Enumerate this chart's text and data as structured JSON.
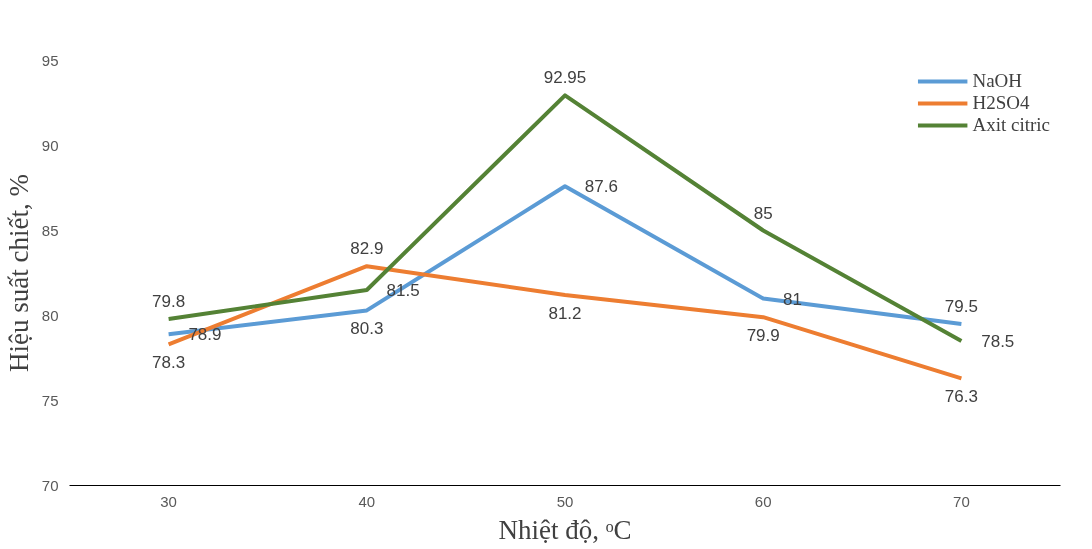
{
  "chart_data": {
    "type": "line",
    "xlabel": "Nhiệt độ, ᵒC",
    "ylabel": "Hiệu suất chiết, %",
    "categories": [
      "30",
      "40",
      "50",
      "60",
      "70"
    ],
    "series": [
      {
        "name": "NaOH",
        "color": "#5b9bd5",
        "values": [
          78.9,
          80.3,
          87.6,
          81,
          79.5
        ]
      },
      {
        "name": "H2SO4",
        "color": "#ed7d31",
        "values": [
          78.3,
          82.9,
          81.2,
          79.9,
          76.3
        ]
      },
      {
        "name": "Axit citric",
        "color": "#548235",
        "values": [
          79.8,
          81.5,
          92.95,
          85,
          78.5
        ]
      }
    ],
    "ylim": [
      70,
      95
    ],
    "yticks": [
      70,
      75,
      80,
      85,
      90,
      95
    ],
    "grid": false,
    "legend": "top right",
    "data_labels": true,
    "marker": "none",
    "line_style": "solid"
  }
}
